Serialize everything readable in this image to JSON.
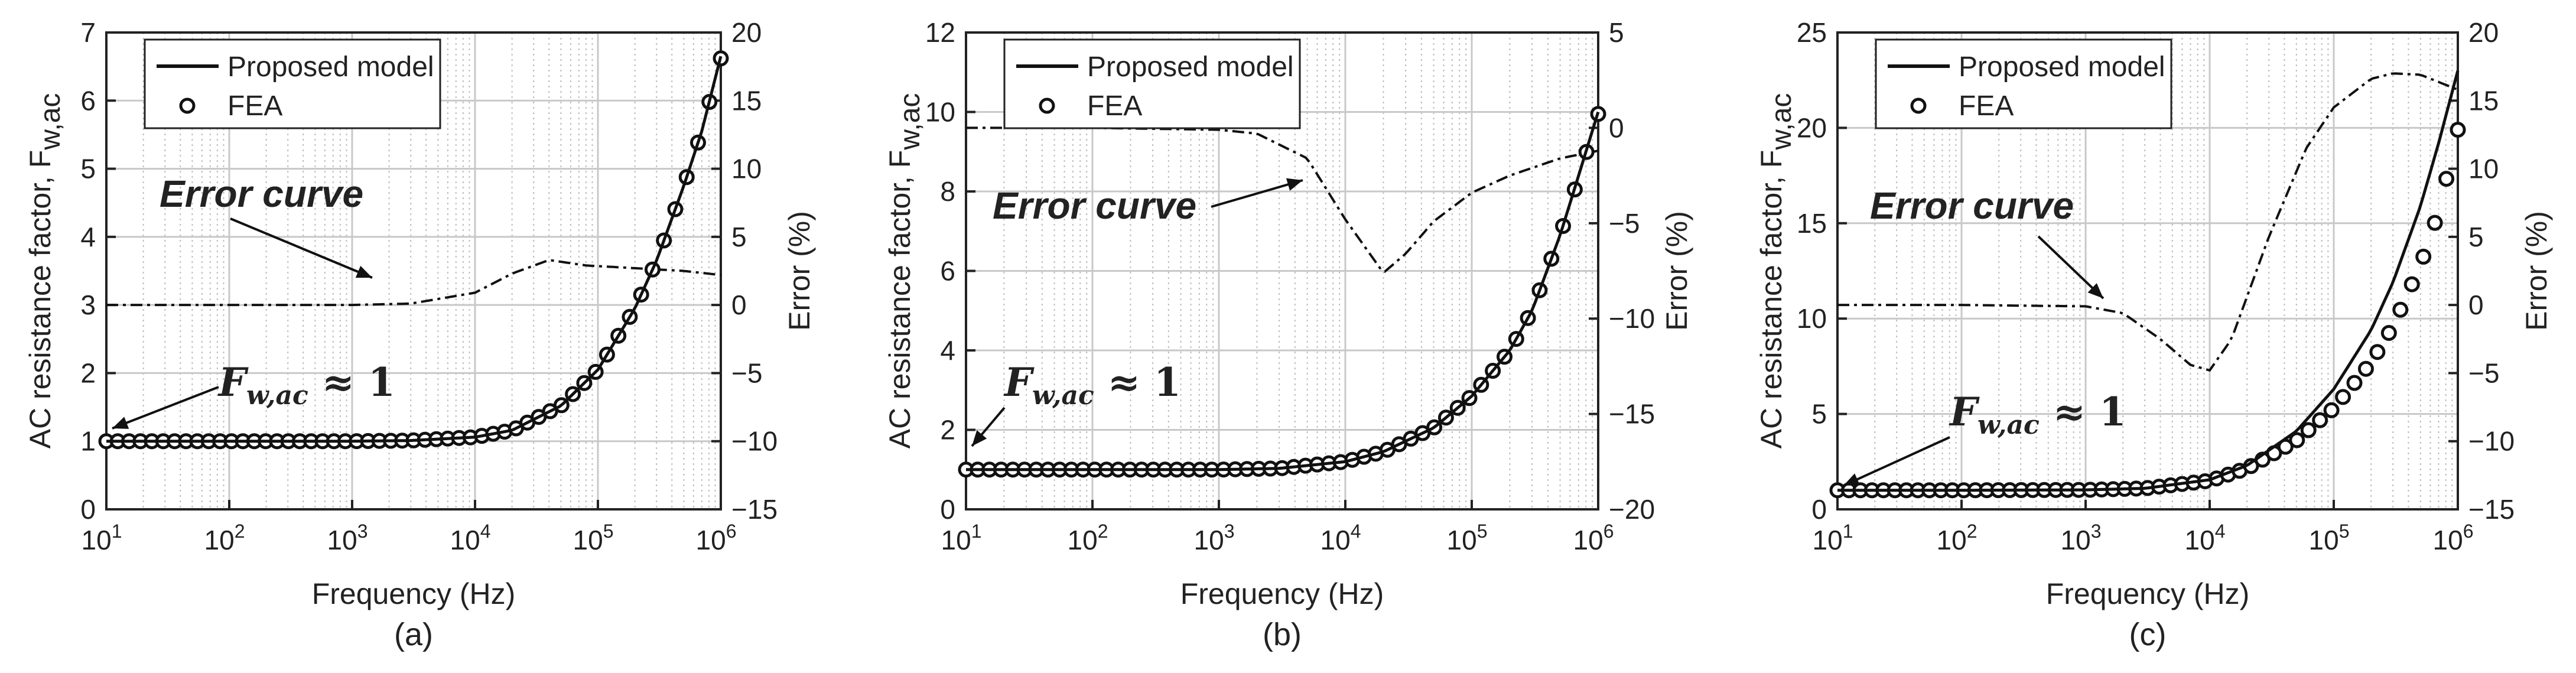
{
  "chart_data": [
    {
      "type": "line",
      "panel_label": "(a)",
      "xlabel": "Frequency (Hz)",
      "ylabel": "AC resistance factor, F",
      "ylabel_sub": "w,ac",
      "y2label": "Error (%)",
      "xscale": "log",
      "xlim": [
        10,
        1000000
      ],
      "ylim": [
        0,
        7
      ],
      "y2lim": [
        -15,
        20
      ],
      "xticks": [
        {
          "base": "10",
          "exp": "1"
        },
        {
          "base": "10",
          "exp": "2"
        },
        {
          "base": "10",
          "exp": "3"
        },
        {
          "base": "10",
          "exp": "4"
        },
        {
          "base": "10",
          "exp": "5"
        },
        {
          "base": "10",
          "exp": "6"
        }
      ],
      "yticks": [
        "0",
        "1",
        "2",
        "3",
        "4",
        "5",
        "6",
        "7"
      ],
      "y2ticks": [
        "−15",
        "−10",
        "−5",
        "0",
        "5",
        "10",
        "15",
        "20"
      ],
      "legend": {
        "line": "Proposed model",
        "marker": "FEA",
        "position": "top-left"
      },
      "annotation_error": "Error curve",
      "annotation_fw": {
        "main": "F",
        "sub": "w,ac",
        "rest": " ≈ 1"
      },
      "model": {
        "name": "Proposed model",
        "x": [
          10,
          100,
          1000,
          3000,
          10000,
          20000,
          50000,
          100000,
          200000,
          300000,
          500000,
          700000,
          1000000
        ],
        "y": [
          1.0,
          1.0,
          1.0,
          1.01,
          1.06,
          1.16,
          1.52,
          2.05,
          2.95,
          3.65,
          4.75,
          5.55,
          6.65
        ]
      },
      "fea": {
        "name": "FEA",
        "x": [
          10,
          100,
          1000,
          3000,
          10000,
          20000,
          50000,
          100000,
          200000,
          300000,
          500000,
          700000,
          1000000
        ],
        "y": [
          1.0,
          1.0,
          1.0,
          1.01,
          1.06,
          1.16,
          1.52,
          2.05,
          2.95,
          3.65,
          4.75,
          5.55,
          6.62
        ]
      },
      "error": {
        "name": "Error curve",
        "x": [
          10,
          100,
          1000,
          3000,
          10000,
          20000,
          40000,
          80000,
          200000,
          500000,
          1000000
        ],
        "y": [
          0,
          0,
          0,
          0.1,
          0.9,
          2.3,
          3.3,
          2.9,
          2.7,
          2.5,
          2.2
        ]
      }
    },
    {
      "type": "line",
      "panel_label": "(b)",
      "xlabel": "Frequency (Hz)",
      "ylabel": "AC resistance factor, F",
      "ylabel_sub": "w,ac",
      "y2label": "Error (%)",
      "xscale": "log",
      "xlim": [
        10,
        1000000
      ],
      "ylim": [
        0,
        12
      ],
      "y2lim": [
        -20,
        5
      ],
      "xticks": [
        {
          "base": "10",
          "exp": "1"
        },
        {
          "base": "10",
          "exp": "2"
        },
        {
          "base": "10",
          "exp": "3"
        },
        {
          "base": "10",
          "exp": "4"
        },
        {
          "base": "10",
          "exp": "5"
        },
        {
          "base": "10",
          "exp": "6"
        }
      ],
      "yticks": [
        "0",
        "2",
        "4",
        "6",
        "8",
        "10",
        "12"
      ],
      "y2ticks": [
        "−20",
        "−15",
        "−10",
        "−5",
        "0",
        "5"
      ],
      "legend": {
        "line": "Proposed model",
        "marker": "FEA",
        "position": "top-left"
      },
      "annotation_error": "Error curve",
      "annotation_fw": {
        "main": "F",
        "sub": "w,ac",
        "rest": " ≈ 1"
      },
      "model": {
        "name": "Proposed model",
        "x": [
          10,
          100,
          1000,
          3000,
          10000,
          20000,
          50000,
          100000,
          200000,
          300000,
          500000,
          700000,
          1000000
        ],
        "y": [
          1.0,
          1.0,
          1.0,
          1.03,
          1.2,
          1.45,
          2.05,
          2.85,
          4.0,
          5.0,
          6.9,
          8.4,
          10.0
        ]
      },
      "fea": {
        "name": "FEA",
        "x": [
          10,
          100,
          1000,
          3000,
          10000,
          20000,
          50000,
          100000,
          200000,
          300000,
          500000,
          700000,
          1000000
        ],
        "y": [
          1.0,
          1.0,
          1.0,
          1.03,
          1.2,
          1.45,
          2.05,
          2.85,
          4.0,
          5.0,
          6.9,
          8.35,
          9.95
        ]
      },
      "error": {
        "name": "Error curve",
        "x": [
          10,
          100,
          1000,
          2000,
          5000,
          10000,
          20000,
          30000,
          50000,
          100000,
          200000,
          500000,
          1000000
        ],
        "y": [
          0,
          0,
          -0.1,
          -0.3,
          -1.6,
          -4.8,
          -7.6,
          -6.6,
          -4.9,
          -3.4,
          -2.5,
          -1.6,
          -1.2
        ]
      }
    },
    {
      "type": "line",
      "panel_label": "(c)",
      "xlabel": "Frequency (Hz)",
      "ylabel": "AC resistance factor, F",
      "ylabel_sub": "w,ac",
      "y2label": "Error (%)",
      "xscale": "log",
      "xlim": [
        10,
        1000000
      ],
      "ylim": [
        0,
        25
      ],
      "y2lim": [
        -15,
        20
      ],
      "xticks": [
        {
          "base": "10",
          "exp": "1"
        },
        {
          "base": "10",
          "exp": "2"
        },
        {
          "base": "10",
          "exp": "3"
        },
        {
          "base": "10",
          "exp": "4"
        },
        {
          "base": "10",
          "exp": "5"
        },
        {
          "base": "10",
          "exp": "6"
        }
      ],
      "yticks": [
        "0",
        "5",
        "10",
        "15",
        "20",
        "25"
      ],
      "y2ticks": [
        "−15",
        "−10",
        "−5",
        "0",
        "5",
        "10",
        "15",
        "20"
      ],
      "legend": {
        "line": "Proposed model",
        "marker": "FEA",
        "position": "top-left"
      },
      "annotation_error": "Error curve",
      "annotation_fw": {
        "main": "F",
        "sub": "w,ac",
        "rest": " ≈ 1"
      },
      "model": {
        "name": "Proposed model",
        "x": [
          10,
          100,
          1000,
          3000,
          10000,
          20000,
          50000,
          100000,
          200000,
          300000,
          500000,
          700000,
          1000000
        ],
        "y": [
          1.0,
          1.0,
          1.02,
          1.1,
          1.55,
          2.3,
          4.1,
          6.3,
          9.4,
          11.9,
          15.9,
          19.2,
          23.0
        ]
      },
      "fea": {
        "name": "FEA",
        "x": [
          10,
          100,
          1000,
          3000,
          10000,
          20000,
          50000,
          100000,
          200000,
          300000,
          500000,
          700000,
          1000000
        ],
        "y": [
          1.0,
          1.0,
          1.02,
          1.1,
          1.5,
          2.15,
          3.6,
          5.3,
          7.7,
          9.6,
          12.8,
          15.6,
          19.9
        ]
      },
      "error": {
        "name": "Error curve",
        "x": [
          10,
          100,
          1000,
          2000,
          4000,
          7000,
          10000,
          15000,
          30000,
          60000,
          100000,
          200000,
          300000,
          500000,
          1000000
        ],
        "y": [
          0,
          0,
          -0.1,
          -0.6,
          -2.5,
          -4.4,
          -4.8,
          -2.5,
          5.0,
          11.5,
          14.5,
          16.6,
          17.0,
          16.9,
          15.8
        ]
      }
    }
  ]
}
